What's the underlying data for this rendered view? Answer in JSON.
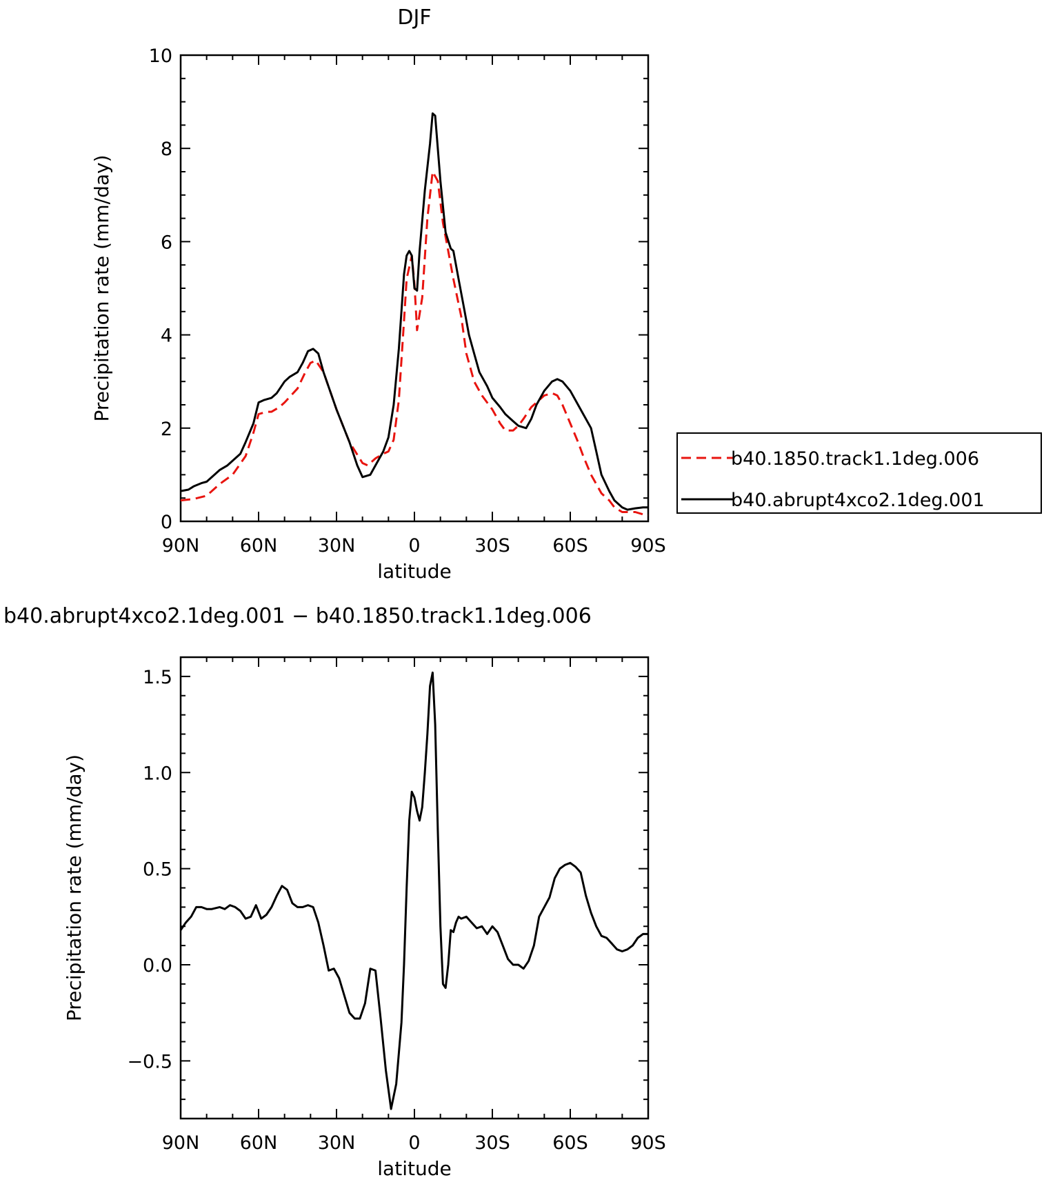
{
  "chart_data": [
    {
      "type": "line",
      "title": "DJF",
      "xlabel": "latitude",
      "ylabel": "Precipitation rate (mm/day)",
      "xlim": [
        90,
        -90
      ],
      "ylim": [
        0,
        10
      ],
      "x_ticks": [
        {
          "v": 90,
          "label": "90N"
        },
        {
          "v": 60,
          "label": "60N"
        },
        {
          "v": 30,
          "label": "30N"
        },
        {
          "v": 0,
          "label": "0"
        },
        {
          "v": -30,
          "label": "30S"
        },
        {
          "v": -60,
          "label": "60S"
        },
        {
          "v": -90,
          "label": "90S"
        }
      ],
      "y_ticks": [
        {
          "v": 0,
          "label": "0"
        },
        {
          "v": 2,
          "label": "2"
        },
        {
          "v": 4,
          "label": "4"
        },
        {
          "v": 6,
          "label": "6"
        },
        {
          "v": 8,
          "label": "8"
        },
        {
          "v": 10,
          "label": "10"
        }
      ],
      "legend_position": "right",
      "series": [
        {
          "name": "b40.1850.track1.1deg.006",
          "color": "#e8140f",
          "dash": "dashed",
          "x": [
            90,
            85,
            80,
            75,
            70,
            65,
            62,
            60,
            57,
            55,
            52,
            50,
            45,
            42,
            40,
            38,
            35,
            30,
            25,
            20,
            18,
            15,
            12,
            10,
            8,
            6,
            4,
            3,
            1,
            0,
            -1,
            -3,
            -5,
            -7,
            -9,
            -11,
            -13,
            -15,
            -18,
            -20,
            -23,
            -26,
            -30,
            -33,
            -35,
            -38,
            -40,
            -42,
            -45,
            -50,
            -53,
            -55,
            -57,
            -60,
            -63,
            -65,
            -68,
            -70,
            -72,
            -75,
            -77,
            -80,
            -82,
            -85,
            -88,
            -90
          ],
          "values": [
            0.45,
            0.48,
            0.55,
            0.8,
            1.0,
            1.4,
            1.9,
            2.3,
            2.35,
            2.35,
            2.45,
            2.55,
            2.85,
            3.2,
            3.4,
            3.45,
            3.2,
            2.4,
            1.7,
            1.25,
            1.2,
            1.35,
            1.45,
            1.5,
            1.75,
            2.6,
            4.3,
            5.2,
            5.7,
            5.1,
            4.1,
            4.8,
            6.5,
            7.5,
            7.3,
            6.4,
            5.8,
            5.2,
            4.4,
            3.6,
            3.0,
            2.7,
            2.4,
            2.1,
            1.95,
            1.95,
            2.05,
            2.2,
            2.45,
            2.7,
            2.75,
            2.7,
            2.5,
            2.1,
            1.7,
            1.4,
            1.0,
            0.8,
            0.6,
            0.45,
            0.3,
            0.2,
            0.2,
            0.2,
            0.15,
            0.13
          ]
        },
        {
          "name": "b40.abrupt4xco2.1deg.001",
          "color": "#000000",
          "dash": "solid",
          "x": [
            90,
            87,
            85,
            82,
            80,
            77,
            75,
            72,
            70,
            67,
            65,
            62,
            60,
            58,
            55,
            53,
            50,
            48,
            45,
            43,
            41,
            39,
            37,
            35,
            30,
            25,
            22,
            20,
            17,
            15,
            12,
            10,
            8,
            6,
            4,
            3,
            2,
            1,
            0,
            -1,
            -2,
            -4,
            -6,
            -7,
            -8,
            -10,
            -12,
            -14,
            -15,
            -17,
            -19,
            -21,
            -23,
            -25,
            -28,
            -30,
            -33,
            -35,
            -38,
            -40,
            -43,
            -45,
            -47,
            -50,
            -53,
            -55,
            -57,
            -60,
            -63,
            -65,
            -68,
            -70,
            -72,
            -75,
            -77,
            -80,
            -82,
            -85,
            -88,
            -90
          ],
          "values": [
            0.65,
            0.68,
            0.75,
            0.82,
            0.85,
            1.0,
            1.1,
            1.2,
            1.3,
            1.45,
            1.7,
            2.1,
            2.55,
            2.6,
            2.65,
            2.75,
            3.0,
            3.1,
            3.2,
            3.4,
            3.65,
            3.7,
            3.6,
            3.2,
            2.4,
            1.7,
            1.2,
            0.95,
            1.0,
            1.2,
            1.5,
            1.8,
            2.5,
            3.7,
            5.3,
            5.7,
            5.8,
            5.7,
            5.0,
            4.95,
            5.8,
            7.1,
            8.1,
            8.75,
            8.7,
            7.3,
            6.2,
            5.85,
            5.8,
            5.2,
            4.6,
            4.0,
            3.6,
            3.2,
            2.9,
            2.65,
            2.45,
            2.3,
            2.15,
            2.05,
            2.0,
            2.2,
            2.5,
            2.8,
            3.0,
            3.05,
            3.0,
            2.8,
            2.5,
            2.3,
            2.0,
            1.5,
            1.0,
            0.65,
            0.45,
            0.3,
            0.25,
            0.28,
            0.3,
            0.3
          ]
        }
      ]
    },
    {
      "type": "line",
      "title": "b40.abrupt4xco2.1deg.001 − b40.1850.track1.1deg.006",
      "xlabel": "latitude",
      "ylabel": "Precipitation rate (mm/day)",
      "xlim": [
        90,
        -90
      ],
      "ylim": [
        -0.8,
        1.6
      ],
      "x_ticks": [
        {
          "v": 90,
          "label": "90N"
        },
        {
          "v": 60,
          "label": "60N"
        },
        {
          "v": 30,
          "label": "30N"
        },
        {
          "v": 0,
          "label": "0"
        },
        {
          "v": -30,
          "label": "30S"
        },
        {
          "v": -60,
          "label": "60S"
        },
        {
          "v": -90,
          "label": "90S"
        }
      ],
      "y_ticks": [
        {
          "v": -0.5,
          "label": "−0.5"
        },
        {
          "v": 0.0,
          "label": "0.0"
        },
        {
          "v": 0.5,
          "label": "0.5"
        },
        {
          "v": 1.0,
          "label": "1.0"
        },
        {
          "v": 1.5,
          "label": "1.5"
        }
      ],
      "series": [
        {
          "color": "#000000",
          "dash": "solid",
          "x": [
            90,
            88,
            86,
            84,
            82,
            80,
            78,
            75,
            73,
            71,
            69,
            67,
            65,
            63,
            61,
            59,
            57,
            55,
            53,
            51,
            49,
            47,
            45,
            43,
            41,
            39,
            37,
            35,
            33,
            31,
            29,
            27,
            25,
            23,
            21,
            19,
            17,
            15,
            13,
            11,
            9,
            7,
            5,
            4,
            3,
            2,
            1,
            0,
            -1,
            -2,
            -3,
            -4,
            -5,
            -6,
            -7,
            -8,
            -9,
            -10,
            -11,
            -12,
            -13,
            -14,
            -15,
            -16,
            -17,
            -18,
            -20,
            -22,
            -24,
            -26,
            -28,
            -30,
            -32,
            -34,
            -36,
            -38,
            -40,
            -42,
            -44,
            -46,
            -48,
            -50,
            -52,
            -54,
            -56,
            -58,
            -60,
            -62,
            -64,
            -66,
            -68,
            -70,
            -72,
            -74,
            -76,
            -78,
            -80,
            -82,
            -84,
            -86,
            -88,
            -90
          ],
          "values": [
            0.18,
            0.22,
            0.25,
            0.3,
            0.3,
            0.29,
            0.29,
            0.3,
            0.29,
            0.31,
            0.3,
            0.28,
            0.24,
            0.25,
            0.31,
            0.24,
            0.26,
            0.3,
            0.36,
            0.41,
            0.39,
            0.32,
            0.3,
            0.3,
            0.31,
            0.3,
            0.22,
            0.1,
            -0.03,
            -0.02,
            -0.07,
            -0.16,
            -0.25,
            -0.28,
            -0.28,
            -0.2,
            -0.02,
            -0.03,
            -0.28,
            -0.55,
            -0.75,
            -0.62,
            -0.3,
            0.0,
            0.4,
            0.75,
            0.9,
            0.87,
            0.8,
            0.75,
            0.82,
            1.0,
            1.2,
            1.45,
            1.52,
            1.25,
            0.7,
            0.2,
            -0.1,
            -0.12,
            0.0,
            0.18,
            0.17,
            0.22,
            0.25,
            0.24,
            0.25,
            0.22,
            0.19,
            0.2,
            0.16,
            0.2,
            0.17,
            0.1,
            0.03,
            0.0,
            0.0,
            -0.02,
            0.02,
            0.1,
            0.25,
            0.3,
            0.35,
            0.45,
            0.5,
            0.52,
            0.53,
            0.51,
            0.48,
            0.36,
            0.27,
            0.2,
            0.15,
            0.14,
            0.11,
            0.08,
            0.07,
            0.08,
            0.1,
            0.14,
            0.16,
            0.16
          ]
        }
      ]
    }
  ]
}
